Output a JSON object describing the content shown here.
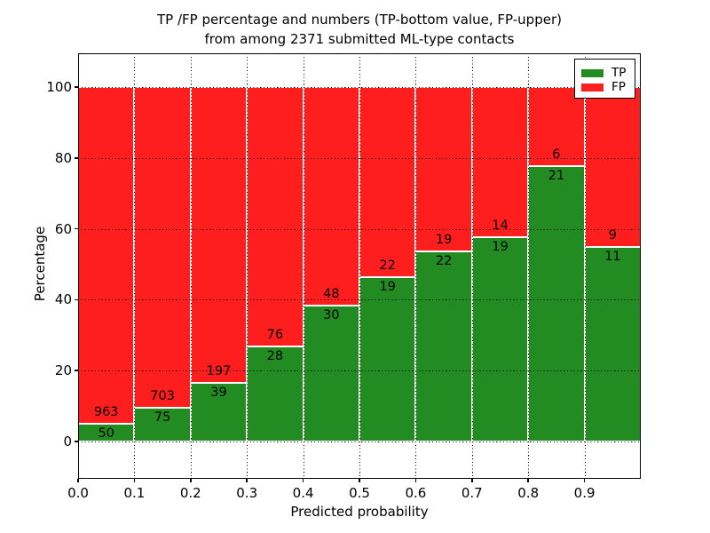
{
  "figure": {
    "title_line1": "TP /FP percentage and numbers (TP-bottom value, FP-upper)",
    "title_line2": "from among 2371 submitted ML-type contacts"
  },
  "chart_data": {
    "type": "bar",
    "stacked": true,
    "normalized_to_percent": true,
    "title": "TP /FP percentage and numbers (TP-bottom value, FP-upper)\nfrom among 2371 submitted ML-type contacts",
    "xlabel": "Predicted probability",
    "ylabel": "Percentage",
    "total_contacts": 2371,
    "bin_width": 0.1,
    "categories": [
      "0.0-0.1",
      "0.1-0.2",
      "0.2-0.3",
      "0.3-0.4",
      "0.4-0.5",
      "0.5-0.6",
      "0.6-0.7",
      "0.7-0.8",
      "0.8-0.9",
      "0.9-1.0"
    ],
    "series": [
      {
        "name": "TP",
        "color": "#228b22",
        "counts": [
          50,
          75,
          39,
          28,
          30,
          19,
          22,
          19,
          21,
          11
        ]
      },
      {
        "name": "FP",
        "color": "#ff1e1e",
        "counts": [
          963,
          703,
          197,
          76,
          48,
          22,
          19,
          14,
          6,
          9
        ]
      }
    ],
    "tp_percent_of_bin": [
      4.94,
      9.64,
      16.53,
      26.92,
      38.46,
      46.34,
      53.66,
      57.58,
      77.78,
      55.0
    ],
    "x_tick_labels": [
      "0.0",
      "0.1",
      "0.2",
      "0.3",
      "0.4",
      "0.5",
      "0.6",
      "0.7",
      "0.8",
      "0.9"
    ],
    "y_ticks": [
      0,
      20,
      40,
      60,
      80,
      100
    ],
    "xlim": [
      0.0,
      1.0
    ],
    "ylim_display": [
      -10.5,
      109.5
    ],
    "grid": "dotted",
    "legend": {
      "position": "upper right",
      "entries": [
        {
          "label": "TP",
          "color": "#228b22"
        },
        {
          "label": "FP",
          "color": "#ff1e1e"
        }
      ]
    }
  }
}
